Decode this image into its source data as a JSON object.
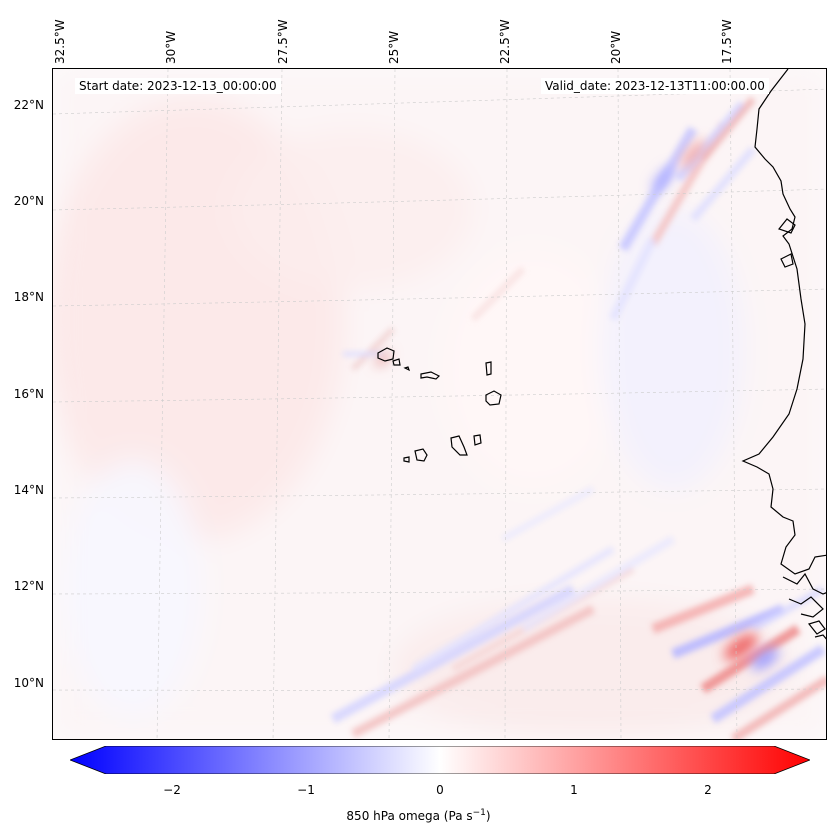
{
  "header": {
    "start_date": "Start date: 2023-12-13_00:00:00",
    "valid_date": "Valid_date: 2023-12-13T11:00:00.00"
  },
  "axes": {
    "longitude_labels": [
      "32.5°W",
      "30°W",
      "27.5°W",
      "25°W",
      "22.5°W",
      "20°W",
      "17.5°W"
    ],
    "latitude_labels": [
      "22°N",
      "20°N",
      "18°N",
      "16°N",
      "14°N",
      "12°N",
      "10°N"
    ]
  },
  "colorbar": {
    "label_prefix": "850 hPa omega (Pa s",
    "label_exp": "−1",
    "label_suffix": ")",
    "ticks": [
      "−2",
      "−1",
      "0",
      "1",
      "2"
    ],
    "range": [
      -2.5,
      2.5
    ],
    "min_color": "#0000ff",
    "mid_color": "#ffffff",
    "max_color": "#ff0000"
  },
  "map": {
    "field": "850 hPa omega",
    "colormap": "bwr",
    "coastline_color": "#000000",
    "grid_color": "#cccccc"
  }
}
